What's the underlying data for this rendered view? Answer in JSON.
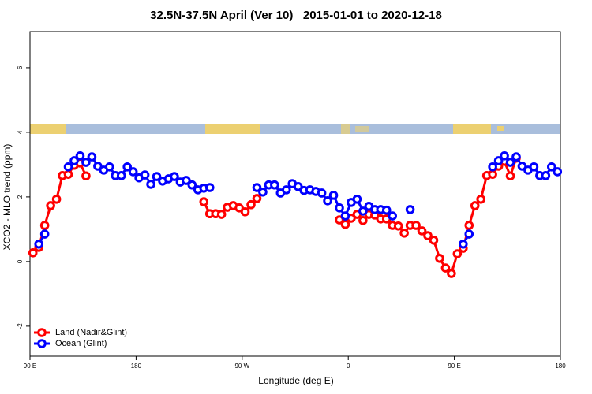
{
  "chart_data": {
    "type": "line",
    "title": "32.5N-37.5N April (Ver 10)   2015-01-01 to 2020-12-18",
    "x_label": "Longitude (deg E)",
    "y_label": "XCO2 - MLO trend (ppm)",
    "xlim": [
      90,
      540
    ],
    "ylim": [
      -2.93,
      7.12
    ],
    "xticks": [
      {
        "value": 90,
        "label": "90 E"
      },
      180,
      {
        "value": 270,
        "label": "90 W"
      },
      {
        "value": 360,
        "label": "0"
      },
      {
        "value": 450,
        "label": "90 E"
      },
      {
        "value": 540,
        "label": "180"
      }
    ],
    "yticks": [
      -2,
      0,
      2,
      4,
      6
    ],
    "legend": "bottom-left",
    "series": [
      {
        "name": "Land (Nadir&Glint)",
        "color": "#ff0000",
        "x": [
          92.5,
          97.5,
          102.5,
          107.5,
          112.5,
          117.5,
          122.5,
          127.5,
          132.5,
          137.5,
          187.5,
          237.5,
          242.5,
          247.5,
          252.5,
          257.5,
          262.5,
          267.5,
          272.5,
          277.5,
          282.5,
          317.5,
          352.5,
          357.5,
          362.5,
          367.5,
          372.5,
          377.5,
          382.5,
          387.5,
          392.5,
          397.5,
          402.5,
          407.5,
          412.5,
          417.5,
          422.5,
          427.5,
          432.5,
          437.5,
          442.5,
          447.5,
          452.5,
          457.5,
          462.5,
          467.5,
          472.5,
          477.5,
          482.5,
          487.5,
          492.5,
          497.5,
          502.5
        ],
        "values": [
          0.27,
          0.44,
          1.12,
          1.73,
          1.93,
          2.66,
          2.7,
          2.98,
          3.05,
          2.65,
          null,
          1.85,
          1.48,
          1.48,
          1.46,
          1.68,
          1.73,
          1.66,
          1.54,
          1.76,
          1.95,
          null,
          1.29,
          1.15,
          1.34,
          1.46,
          1.27,
          1.46,
          1.44,
          1.32,
          1.32,
          1.12,
          1.1,
          0.88,
          1.12,
          1.12,
          0.95,
          0.8,
          0.66,
          0.1,
          -0.2,
          -0.37,
          0.24,
          0.41,
          1.12,
          1.73,
          1.93,
          2.66,
          2.7,
          2.95,
          3.1,
          2.65,
          3.2
        ]
      },
      {
        "name": "Ocean (Glint)",
        "color": "#0000ff",
        "x": [
          97.5,
          102.5,
          112.5,
          122.5,
          127.5,
          132.5,
          137.5,
          142.5,
          147.5,
          152.5,
          157.5,
          162.5,
          167.5,
          172.5,
          177.5,
          182.5,
          187.5,
          192.5,
          197.5,
          202.5,
          207.5,
          212.5,
          217.5,
          222.5,
          227.5,
          232.5,
          237.5,
          242.5,
          262.5,
          282.5,
          287.5,
          292.5,
          297.5,
          302.5,
          307.5,
          312.5,
          317.5,
          322.5,
          327.5,
          332.5,
          337.5,
          342.5,
          347.5,
          352.5,
          357.5,
          362.5,
          367.5,
          372.5,
          377.5,
          382.5,
          387.5,
          392.5,
          397.5,
          407.5,
          412.5,
          435,
          457.5,
          462.5,
          472.5,
          482.5,
          487.5,
          492.5,
          497.5,
          502.5,
          507.5,
          512.5,
          517.5,
          522.5,
          527.5,
          532.5,
          537.5
        ],
        "values": [
          0.54,
          0.85,
          null,
          2.93,
          3.12,
          3.27,
          3.07,
          3.24,
          2.95,
          2.83,
          2.93,
          2.66,
          2.66,
          2.93,
          2.78,
          2.59,
          2.68,
          2.39,
          2.63,
          2.49,
          2.56,
          2.63,
          2.46,
          2.51,
          2.37,
          2.22,
          2.27,
          2.29,
          null,
          2.29,
          2.15,
          2.37,
          2.37,
          2.12,
          2.22,
          2.41,
          2.32,
          2.2,
          2.22,
          2.17,
          2.12,
          1.88,
          2.05,
          1.66,
          1.41,
          1.83,
          1.93,
          1.56,
          1.71,
          1.61,
          1.61,
          1.59,
          1.41,
          null,
          1.61,
          null,
          0.54,
          0.85,
          null,
          2.93,
          3.12,
          3.27,
          3.07,
          3.24,
          2.95,
          2.83,
          2.93,
          2.66,
          2.66,
          2.93,
          2.78
        ]
      }
    ]
  }
}
